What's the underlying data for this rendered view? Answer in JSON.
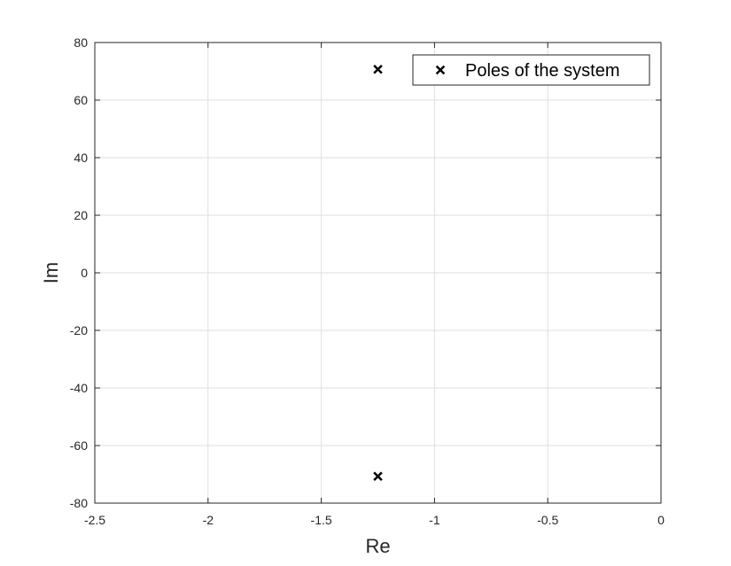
{
  "chart_data": {
    "type": "scatter",
    "xlabel": "Re",
    "ylabel": "Im",
    "xlim": [
      -2.5,
      0
    ],
    "ylim": [
      -80,
      80
    ],
    "xticks": [
      -2.5,
      -2,
      -1.5,
      -1,
      -0.5,
      0
    ],
    "yticks": [
      -80,
      -60,
      -40,
      -20,
      0,
      20,
      40,
      60,
      80
    ],
    "xtick_labels": [
      "-2.5",
      "-2",
      "-1.5",
      "-1",
      "-0.5",
      "0"
    ],
    "ytick_labels": [
      "-80",
      "-60",
      "-40",
      "-20",
      "0",
      "20",
      "40",
      "60",
      "80"
    ],
    "grid": true,
    "legend_position": "top-right",
    "series": [
      {
        "name": "Poles of the system",
        "marker": "x",
        "color": "#000000",
        "points": [
          {
            "x": -1.25,
            "y": 70.7
          },
          {
            "x": -1.25,
            "y": -70.7
          }
        ]
      }
    ]
  }
}
